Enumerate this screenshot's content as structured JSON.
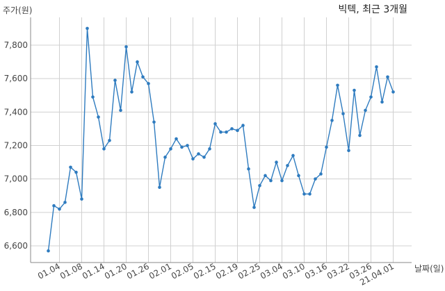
{
  "chart_data": {
    "type": "line",
    "title": "빅텍, 최근 3개월",
    "ylabel": "주가(원)",
    "xlabel": "날짜(일)",
    "ylim": [
      6500,
      8000
    ],
    "yticks": [
      6600,
      6800,
      7000,
      7200,
      7400,
      7600,
      7800
    ],
    "ytick_labels": [
      "6,600",
      "6,800",
      "7,000",
      "7,200",
      "7,400",
      "7,600",
      "7,800"
    ],
    "xtick_labels": [
      "01.04",
      "01.08",
      "01.14",
      "01.20",
      "01.26",
      "02.01",
      "02.05",
      "02.15",
      "02.19",
      "02.25",
      "03.04",
      "03.10",
      "03.16",
      "03.22",
      "03.26",
      "21.04.01"
    ],
    "xtick_index": [
      2,
      6,
      10,
      14,
      18,
      22,
      26,
      30,
      34,
      38,
      42,
      46,
      50,
      54,
      58,
      62
    ],
    "grid": true,
    "color": "#2e7bbf",
    "values": [
      6570,
      6840,
      6820,
      6860,
      7070,
      7040,
      6880,
      7900,
      7490,
      7370,
      7180,
      7230,
      7590,
      7410,
      7790,
      7520,
      7700,
      7610,
      7570,
      7340,
      6950,
      7130,
      7180,
      7240,
      7190,
      7200,
      7120,
      7150,
      7130,
      7180,
      7330,
      7280,
      7280,
      7300,
      7290,
      7320,
      7060,
      6830,
      6960,
      7020,
      6990,
      7100,
      6990,
      7080,
      7140,
      7020,
      6910,
      6910,
      7000,
      7030,
      7190,
      7350,
      7560,
      7390,
      7170,
      7530,
      7260,
      7410,
      7490,
      7670,
      7460,
      7610,
      7520
    ]
  }
}
